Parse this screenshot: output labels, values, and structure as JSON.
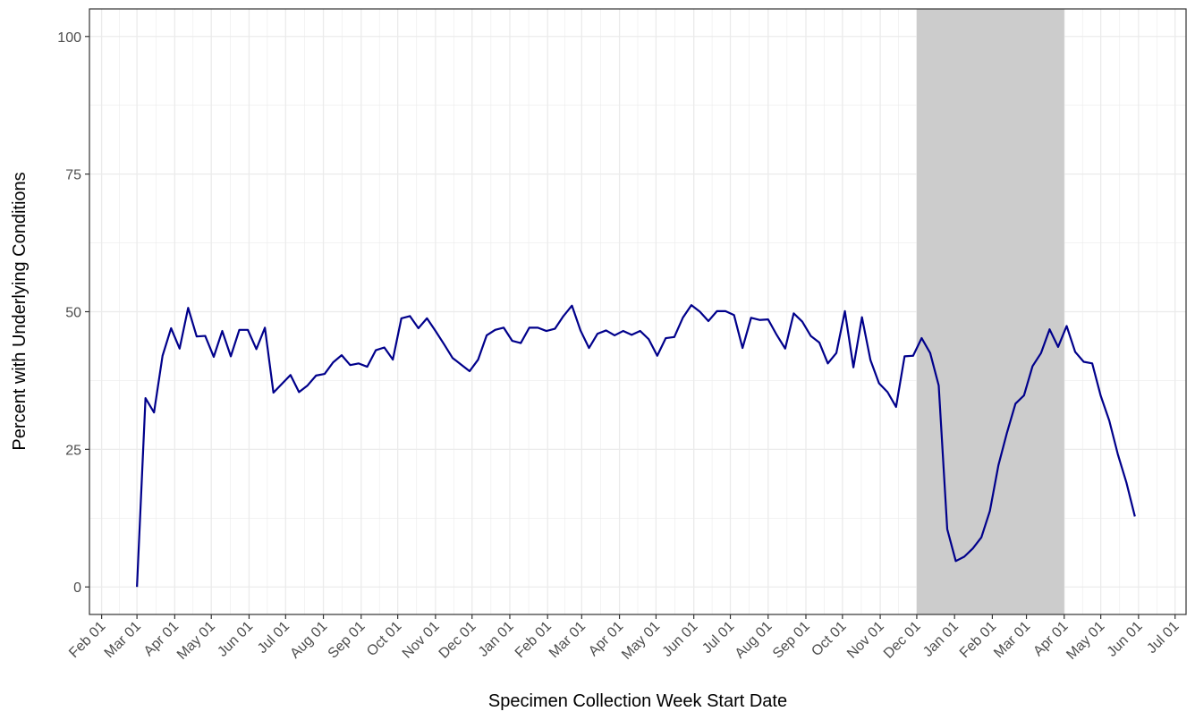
{
  "chart_data": {
    "type": "line",
    "xlabel": "Specimen Collection Week Start Date",
    "ylabel": "Percent with Underlying Conditions",
    "color": "#00008b",
    "shade_color": "#cccccc",
    "shaded_range": [
      669,
      790
    ],
    "grid": true,
    "xlim": [
      -10,
      890
    ],
    "ylim": [
      -5,
      105
    ],
    "yticks": [
      0,
      25,
      50,
      75,
      100
    ],
    "xticks": [
      {
        "value": 0,
        "label": "Feb 01"
      },
      {
        "value": 29,
        "label": "Mar 01"
      },
      {
        "value": 60,
        "label": "Apr 01"
      },
      {
        "value": 90,
        "label": "May 01"
      },
      {
        "value": 121,
        "label": "Jun 01"
      },
      {
        "value": 151,
        "label": "Jul 01"
      },
      {
        "value": 182,
        "label": "Aug 01"
      },
      {
        "value": 213,
        "label": "Sep 01"
      },
      {
        "value": 243,
        "label": "Oct 01"
      },
      {
        "value": 274,
        "label": "Nov 01"
      },
      {
        "value": 304,
        "label": "Dec 01"
      },
      {
        "value": 335,
        "label": "Jan 01"
      },
      {
        "value": 366,
        "label": "Feb 01"
      },
      {
        "value": 394,
        "label": "Mar 01"
      },
      {
        "value": 425,
        "label": "Apr 01"
      },
      {
        "value": 455,
        "label": "May 01"
      },
      {
        "value": 486,
        "label": "Jun 01"
      },
      {
        "value": 516,
        "label": "Jul 01"
      },
      {
        "value": 547,
        "label": "Aug 01"
      },
      {
        "value": 578,
        "label": "Sep 01"
      },
      {
        "value": 608,
        "label": "Oct 01"
      },
      {
        "value": 639,
        "label": "Nov 01"
      },
      {
        "value": 669,
        "label": "Dec 01"
      },
      {
        "value": 700,
        "label": "Jan 01"
      },
      {
        "value": 731,
        "label": "Feb 01"
      },
      {
        "value": 759,
        "label": "Mar 01"
      },
      {
        "value": 790,
        "label": "Apr 01"
      },
      {
        "value": 820,
        "label": "May 01"
      },
      {
        "value": 851,
        "label": "Jun 01"
      },
      {
        "value": 881,
        "label": "Jul 01"
      }
    ],
    "x": [
      29,
      36,
      43,
      50,
      57,
      64,
      71,
      78,
      85,
      92,
      99,
      106,
      113,
      120,
      127,
      134,
      141,
      148,
      155,
      162,
      169,
      176,
      183,
      190,
      197,
      204,
      211,
      218,
      225,
      232,
      239,
      246,
      253,
      260,
      267,
      274,
      281,
      288,
      295,
      302,
      309,
      316,
      323,
      330,
      337,
      344,
      351,
      358,
      365,
      372,
      379,
      386,
      393,
      400,
      407,
      414,
      421,
      428,
      435,
      442,
      449,
      456,
      463,
      470,
      477,
      484,
      491,
      498,
      505,
      512,
      519,
      526,
      533,
      540,
      547,
      554,
      561,
      568,
      575,
      582,
      589,
      596,
      603,
      610,
      617,
      624,
      631,
      638,
      645,
      652,
      659,
      666,
      673,
      680,
      687,
      694,
      701,
      708,
      715,
      722,
      729,
      736,
      743,
      750,
      757,
      764,
      771,
      778,
      785,
      792,
      799,
      806,
      813,
      820,
      827,
      834,
      841,
      848
    ],
    "values": [
      0,
      34.3,
      31.7,
      42,
      47,
      43.3,
      50.7,
      45.5,
      45.6,
      41.8,
      46.5,
      41.9,
      46.7,
      46.7,
      43.2,
      47.1,
      35.3,
      36.9,
      38.5,
      35.4,
      36.6,
      38.4,
      38.7,
      40.8,
      42.1,
      40.3,
      40.6,
      40,
      43,
      43.5,
      41.3,
      48.8,
      49.2,
      47,
      48.8,
      46.5,
      44.1,
      41.6,
      40.4,
      39.2,
      41.3,
      45.7,
      46.7,
      47.1,
      44.7,
      44.3,
      47.1,
      47.1,
      46.5,
      46.9,
      49.2,
      51.1,
      46.6,
      43.4,
      46,
      46.6,
      45.7,
      46.5,
      45.8,
      46.5,
      45,
      42,
      45.2,
      45.4,
      48.9,
      51.2,
      50,
      48.3,
      50.1,
      50.1,
      49.4,
      43.4,
      48.9,
      48.5,
      48.6,
      45.8,
      43.3,
      49.7,
      48.2,
      45.6,
      44.4,
      40.6,
      42.5,
      50.1,
      39.9,
      49,
      41.2,
      37,
      35.4,
      32.7,
      41.9,
      42,
      45.2,
      42.5,
      36.6,
      10.5,
      4.7,
      5.5,
      7,
      9,
      13.8,
      22.1,
      28,
      33.3,
      34.8,
      40.1,
      42.5,
      46.8,
      43.6,
      47.4,
      42.7,
      40.9,
      40.6,
      34.7,
      30.2,
      24.1,
      19,
      12.8
    ]
  }
}
